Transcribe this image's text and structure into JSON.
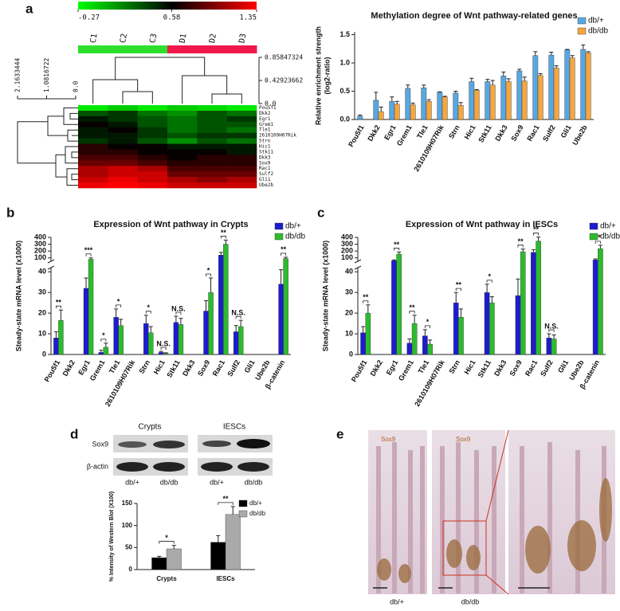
{
  "chart_data": [
    {
      "type": "heatmap",
      "panel": "a",
      "columns": [
        "C1",
        "C2",
        "C3",
        "D1",
        "D2",
        "D3"
      ],
      "column_colors": [
        "#2ee02e",
        "#2ee02e",
        "#2ee02e",
        "#f0184a",
        "#f0184a",
        "#f0184a"
      ],
      "rows": [
        "Pou5f1",
        "Dkk2",
        "Egr1",
        "Grem1",
        "Tle1",
        "2610109H07Rik",
        "Strn",
        "Hic1",
        "Stk11",
        "Dkk3",
        "Sox9",
        "Rac1",
        "Sulf2",
        "Gli1",
        "Ube2b"
      ],
      "values": [
        [
          -0.2,
          -0.1,
          -0.2,
          -0.1,
          -0.15,
          -0.2
        ],
        [
          0.3,
          0.4,
          0.2,
          0.1,
          0.3,
          0.2
        ],
        [
          0.5,
          0.4,
          0.3,
          0.2,
          0.3,
          0.4
        ],
        [
          0.6,
          0.5,
          0.3,
          0.2,
          0.3,
          0.3
        ],
        [
          0.5,
          0.6,
          0.4,
          0.2,
          0.3,
          0.2
        ],
        [
          0.5,
          0.5,
          0.4,
          0.3,
          0.4,
          0.4
        ],
        [
          0.4,
          0.5,
          0.3,
          0.1,
          0.3,
          0.2
        ],
        [
          0.7,
          0.6,
          0.6,
          0.5,
          0.5,
          0.5
        ],
        [
          0.7,
          0.7,
          0.6,
          0.6,
          0.6,
          0.5
        ],
        [
          0.8,
          0.8,
          0.7,
          0.6,
          0.7,
          0.7
        ],
        [
          0.9,
          0.9,
          0.8,
          0.7,
          0.7,
          0.7
        ],
        [
          1.1,
          1.2,
          1.1,
          0.8,
          0.8,
          0.8
        ],
        [
          1.1,
          1.2,
          1.2,
          0.9,
          0.9,
          0.9
        ],
        [
          1.2,
          1.3,
          1.2,
          1.1,
          1.0,
          1.1
        ],
        [
          1.3,
          1.35,
          1.3,
          1.2,
          1.2,
          1.2
        ]
      ],
      "colorscale": {
        "ticks": [
          -0.27,
          0.58,
          1.35
        ],
        "colors": [
          "#00ff00",
          "#000000",
          "#ff0000"
        ]
      },
      "col_dendrogram_ticks": [
        0.85847324,
        0.42923662,
        {
          "value": 0,
          "label": "0.0"
        }
      ],
      "row_dendrogram_ticks": [
        2.1633444,
        1.0816722,
        {
          "value": 0,
          "label": "0.0"
        }
      ]
    },
    {
      "type": "bar",
      "title": "Methylation degree of Wnt pathway-related genes",
      "ylabel": [
        "Relative enrichment strength",
        "(log2-ratio)"
      ],
      "categories": [
        "Pou5f1",
        "Dkk2",
        "Egr1",
        "Grem1",
        "Tle1",
        "2610109H07Rik",
        "Strn",
        "Hic1",
        "Stk11",
        "Dkk3",
        "Sox9",
        "Rac1",
        "Sulf2",
        "Gli1",
        "Ube2b"
      ],
      "series": [
        {
          "name": "db/+",
          "color": "#5aa7e0",
          "values": [
            0.06,
            0.34,
            0.32,
            0.55,
            0.56,
            0.48,
            0.47,
            0.67,
            0.67,
            0.77,
            0.86,
            1.13,
            1.14,
            1.23,
            1.24
          ],
          "errors": [
            0.02,
            0.14,
            0.08,
            0.06,
            0.05,
            0.01,
            0.03,
            0.06,
            0.04,
            0.07,
            0.03,
            0.07,
            0.05,
            0.01,
            0.08
          ]
        },
        {
          "name": "db/db",
          "color": "#f4a640",
          "values": [
            null,
            0.14,
            0.27,
            0.26,
            0.32,
            0.4,
            0.25,
            0.52,
            0.61,
            0.67,
            0.68,
            0.78,
            0.91,
            1.09,
            1.18
          ],
          "errors": [
            null,
            0.08,
            0.05,
            0.03,
            0.03,
            0.01,
            0.05,
            0.01,
            0.08,
            0.05,
            0.07,
            0.03,
            0.04,
            0.04,
            0.02
          ]
        }
      ],
      "ylim": [
        0,
        1.55
      ],
      "yticks": [
        {
          "value": 0,
          "label": "0.0"
        },
        0.5,
        {
          "value": 1,
          "label": "1.0"
        },
        1.5
      ],
      "legend": "upper right"
    },
    {
      "type": "bar",
      "panel": "b",
      "title": "Expression of Wnt pathway in Crypts",
      "ylabel": "Steady-state mRNA level (x1000)",
      "categories": [
        "Pou5f1",
        "Dkk2",
        "Egr1",
        "Grem1",
        "Tle1",
        "2610109H07Rik",
        "Strn",
        "Hic1",
        "Stk11",
        "Dkk3",
        "Sox9",
        "Rac1",
        "Sulf2",
        "Gli1",
        "Ube2b",
        "β-catenin"
      ],
      "series": [
        {
          "name": "db/+",
          "color": "#1c1ccf",
          "values": [
            8,
            null,
            32,
            1,
            18,
            null,
            15,
            1,
            15.5,
            null,
            21,
            140,
            11,
            null,
            null,
            34
          ],
          "errors": [
            3,
            null,
            5,
            1,
            4,
            null,
            4,
            0.5,
            3,
            null,
            5,
            40,
            3,
            null,
            null,
            7
          ]
        },
        {
          "name": "db/db",
          "color": "#2dbb2d",
          "values": [
            16.5,
            null,
            80,
            3.5,
            14,
            null,
            10.5,
            0.5,
            14.5,
            null,
            30,
            300,
            13.5,
            null,
            null,
            90
          ],
          "errors": [
            5,
            null,
            20,
            2,
            3,
            null,
            3,
            0.3,
            3,
            null,
            7,
            60,
            3,
            null,
            null,
            20
          ]
        }
      ],
      "significance": [
        "**",
        null,
        "***",
        "*",
        "*",
        null,
        "*",
        "N.S.",
        "N.S.",
        null,
        "*",
        "**",
        "N.S.",
        null,
        null,
        "**"
      ],
      "ylim_segments": [
        [
          0,
          42
        ],
        [
          50,
          400
        ]
      ],
      "yticks": [
        0,
        10,
        20,
        30,
        40,
        100,
        200,
        300,
        400
      ],
      "legend": "upper right"
    },
    {
      "type": "bar",
      "panel": "c",
      "title": "Expression of Wnt pathway in IESCs",
      "ylabel": "Steady-state mRNA level (x1000)",
      "categories": [
        "Pou5f1",
        "Dkk2",
        "Egr1",
        "Grem1",
        "Tle1",
        "2610109H07Rik",
        "Strn",
        "Hic1",
        "Stk11",
        "Dkk3",
        "Sox9",
        "Rac1",
        "Sulf2",
        "Gli1",
        "Ube2b",
        "β-catenin"
      ],
      "series": [
        {
          "name": "db/+",
          "color": "#1c1ccf",
          "values": [
            10.5,
            null,
            60,
            5.5,
            9,
            null,
            25,
            null,
            30,
            null,
            28.5,
            180,
            8,
            null,
            null,
            70
          ],
          "errors": [
            3,
            null,
            10,
            2,
            3,
            null,
            5,
            null,
            4,
            null,
            8,
            40,
            2,
            null,
            null,
            15
          ]
        },
        {
          "name": "db/db",
          "color": "#2dbb2d",
          "values": [
            20,
            null,
            155,
            15,
            5,
            null,
            18,
            null,
            25,
            null,
            190,
            345,
            7.5,
            null,
            null,
            235
          ],
          "errors": [
            4,
            null,
            30,
            4,
            2,
            null,
            4,
            null,
            3,
            null,
            40,
            60,
            2,
            null,
            null,
            50
          ]
        }
      ],
      "significance": [
        "**",
        null,
        "**",
        "**",
        "*",
        null,
        "**",
        null,
        "*",
        null,
        "**",
        "**",
        "N.S.",
        null,
        null,
        "**"
      ],
      "ylim_segments": [
        [
          0,
          42
        ],
        [
          50,
          400
        ]
      ],
      "yticks": [
        0,
        10,
        20,
        30,
        40,
        100,
        200,
        300,
        400
      ],
      "legend": "upper right"
    },
    {
      "type": "bar",
      "ylabel": "% Intensity of Western Blot (X100)",
      "categories": [
        "Crypts",
        "IESCs"
      ],
      "series": [
        {
          "name": "db/+",
          "color": "#000000",
          "values": [
            27,
            62
          ],
          "errors": [
            3,
            15
          ]
        },
        {
          "name": "db/db",
          "color": "#aaaaaa",
          "values": [
            47,
            125
          ],
          "errors": [
            8,
            18
          ]
        }
      ],
      "significance": [
        "*",
        "**"
      ],
      "ylim": [
        0,
        150
      ],
      "yticks": [
        0,
        50,
        100,
        150
      ],
      "legend": "upper right"
    }
  ],
  "panel_d_blot": {
    "panel": "d",
    "groups": [
      "Crypts",
      "IESCs"
    ],
    "rows": [
      "Sox9",
      "β-actin"
    ],
    "lanes": [
      "db/+",
      "db/db",
      "db/+",
      "db/db"
    ]
  },
  "panel_e": {
    "panel": "e",
    "stain_labels": [
      "Sox9",
      "Sox9"
    ],
    "captions": [
      "db/+",
      "db/db"
    ]
  }
}
